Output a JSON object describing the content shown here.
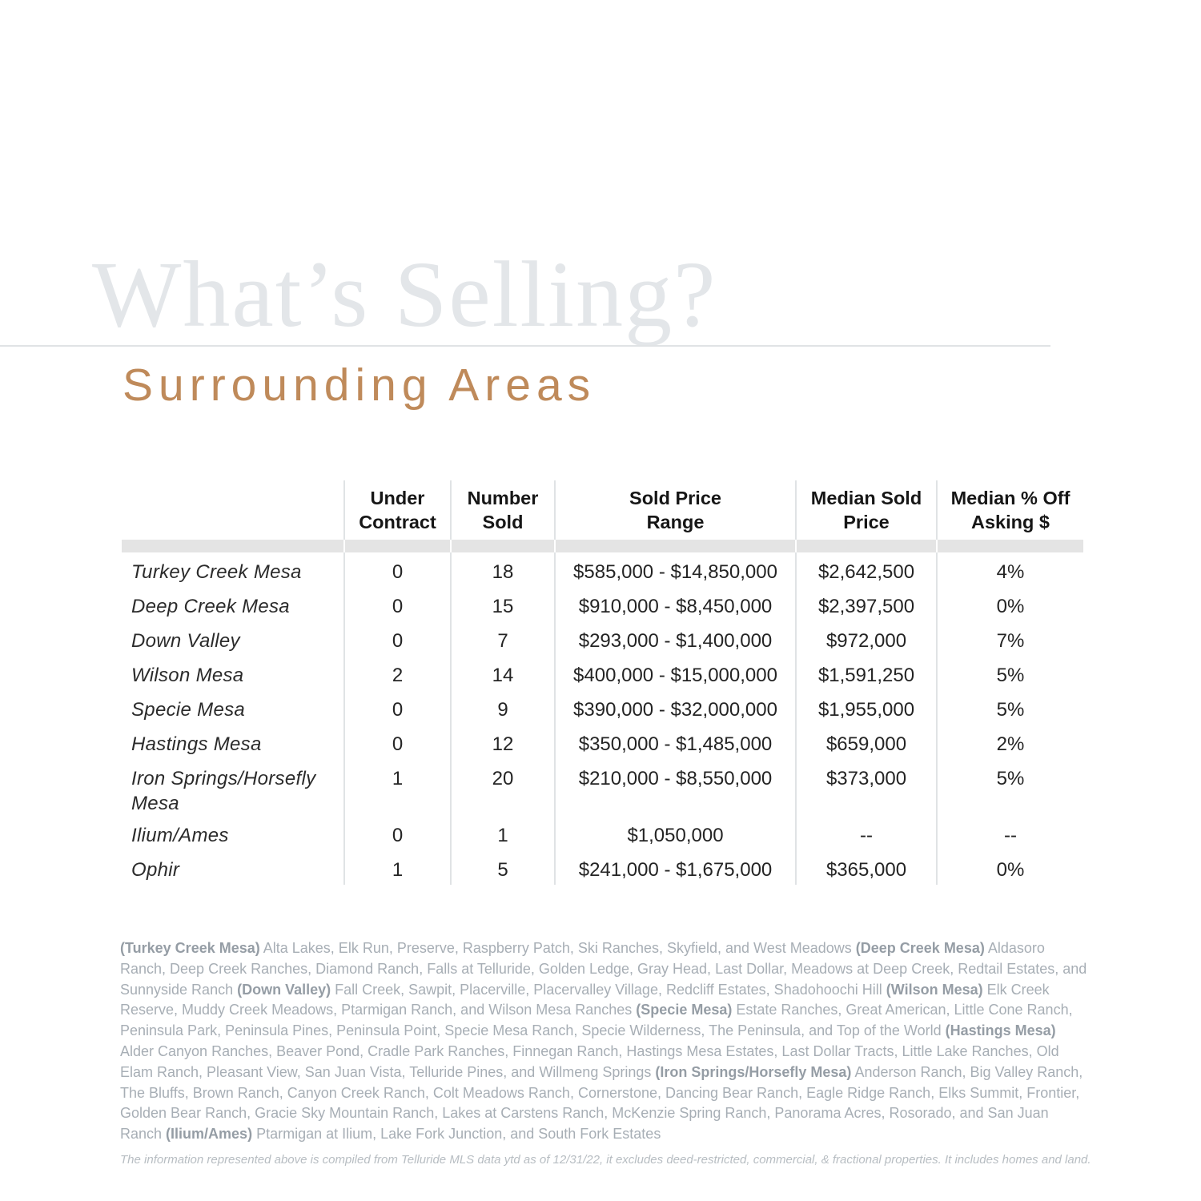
{
  "header": {
    "watermark": "What’s Selling?",
    "subtitle": "Surrounding Areas"
  },
  "table": {
    "columns": [
      "",
      "Under\nContract",
      "Number\nSold",
      "Sold Price\nRange",
      "Median Sold\nPrice",
      "Median % Off\nAsking $"
    ],
    "rows": [
      {
        "area": "Turkey Creek Mesa",
        "under_contract": "0",
        "number_sold": "18",
        "sold_price_range": "$585,000 - $14,850,000",
        "median_sold_price": "$2,642,500",
        "median_pct_off_asking": "4%"
      },
      {
        "area": "Deep Creek Mesa",
        "under_contract": "0",
        "number_sold": "15",
        "sold_price_range": "$910,000 - $8,450,000",
        "median_sold_price": "$2,397,500",
        "median_pct_off_asking": "0%"
      },
      {
        "area": "Down Valley",
        "under_contract": "0",
        "number_sold": "7",
        "sold_price_range": "$293,000 - $1,400,000",
        "median_sold_price": "$972,000",
        "median_pct_off_asking": "7%"
      },
      {
        "area": "Wilson Mesa",
        "under_contract": "2",
        "number_sold": "14",
        "sold_price_range": "$400,000 - $15,000,000",
        "median_sold_price": "$1,591,250",
        "median_pct_off_asking": "5%"
      },
      {
        "area": "Specie Mesa",
        "under_contract": "0",
        "number_sold": "9",
        "sold_price_range": "$390,000 - $32,000,000",
        "median_sold_price": "$1,955,000",
        "median_pct_off_asking": "5%"
      },
      {
        "area": "Hastings Mesa",
        "under_contract": "0",
        "number_sold": "12",
        "sold_price_range": "$350,000 - $1,485,000",
        "median_sold_price": "$659,000",
        "median_pct_off_asking": "2%"
      },
      {
        "area": "Iron Springs/Horsefly Mesa",
        "under_contract": "1",
        "number_sold": "20",
        "sold_price_range": "$210,000 - $8,550,000",
        "median_sold_price": "$373,000",
        "median_pct_off_asking": "5%"
      },
      {
        "area": "Ilium/Ames",
        "under_contract": "0",
        "number_sold": "1",
        "sold_price_range": "$1,050,000",
        "median_sold_price": "--",
        "median_pct_off_asking": "--"
      },
      {
        "area": "Ophir",
        "under_contract": "1",
        "number_sold": "5",
        "sold_price_range": "$241,000 - $1,675,000",
        "median_sold_price": "$365,000",
        "median_pct_off_asking": "0%"
      }
    ]
  },
  "footnote": {
    "segments": [
      {
        "label": "(Turkey Creek Mesa)",
        "communities": " Alta Lakes, Elk Run, Preserve, Raspberry Patch, Ski Ranches, Skyfield, and West Meadows "
      },
      {
        "label": "(Deep Creek Mesa)",
        "communities": " Aldasoro Ranch, Deep Creek Ranches, Diamond Ranch, Falls at Telluride, Golden Ledge, Gray Head, Last Dollar, Meadows at Deep Creek, Redtail Estates, and Sunnyside Ranch "
      },
      {
        "label": "(Down Valley)",
        "communities": " Fall Creek, Sawpit, Placerville, Placervalley Village, Redcliff Estates, Shadohoochi Hill "
      },
      {
        "label": "(Wilson Mesa)",
        "communities": " Elk Creek Reserve, Muddy Creek Meadows, Ptarmigan Ranch, and Wilson Mesa Ranches "
      },
      {
        "label": "(Specie Mesa)",
        "communities": " Estate Ranches, Great American, Little Cone Ranch, Peninsula Park, Peninsula Pines, Peninsula Point, Specie Mesa Ranch, Specie Wilderness, The Peninsula, and Top of the World "
      },
      {
        "label": "(Hastings Mesa)",
        "communities": " Alder Canyon Ranches, Beaver Pond, Cradle Park Ranches, Finnegan Ranch, Hastings Mesa Estates, Last Dollar Tracts, Little Lake Ranches, Old Elam Ranch, Pleasant View, San Juan Vista, Telluride Pines, and Willmeng Springs "
      },
      {
        "label": "(Iron Springs/Horsefly Mesa)",
        "communities": " Anderson Ranch, Big Valley Ranch, The Bluffs, Brown Ranch, Canyon Creek Ranch, Colt Meadows Ranch, Cornerstone, Dancing Bear Ranch, Eagle Ridge Ranch, Elks Summit, Frontier, Golden Bear Ranch, Gracie Sky Mountain Ranch, Lakes at Carstens Ranch, McKenzie Spring Ranch, Panorama Acres, Rosorado, and San Juan Ranch "
      },
      {
        "label": "(Ilium/Ames)",
        "communities": " Ptarmigan at Ilium, Lake Fork Junction, and South Fork Estates"
      }
    ]
  },
  "disclaimer": "The information represented above is compiled from Telluride MLS data ytd as of 12/31/22, it excludes deed-restricted, commercial, & fractional properties. It includes homes and land.",
  "colors": {
    "accent_tan": "#bf8a5a",
    "watermark_gray": "#e3e6e9",
    "band_gray": "#e4e4e4",
    "divider_gray": "#e0e3e5",
    "footnote_gray": "#a7aeb5",
    "body_text": "#242424"
  }
}
